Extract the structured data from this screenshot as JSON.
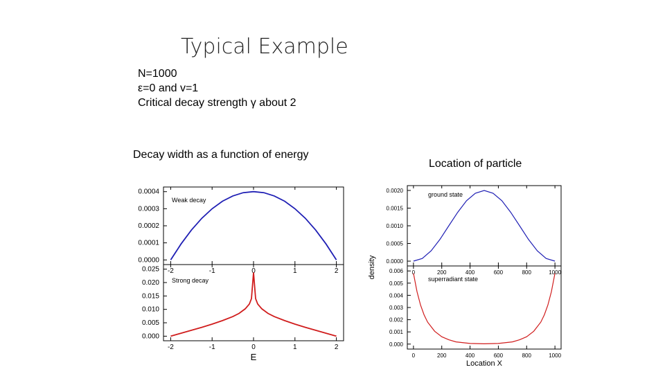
{
  "slide": {
    "title": "Typical Example",
    "params": [
      "N=1000",
      "ε=0 and v=1",
      "Critical decay strength γ about 2"
    ],
    "left_caption": "Decay width as a function of energy",
    "right_caption": "Location of particle"
  },
  "chart_data": [
    {
      "type": "line",
      "panel": "left-top",
      "annotation": "Weak decay",
      "xlabel": "",
      "ylabel": "",
      "xlim": [
        -2,
        2
      ],
      "ylim": [
        0,
        0.0004
      ],
      "xticks": [
        "-2",
        "-1",
        "0",
        "1",
        "2"
      ],
      "yticks": [
        "0.0000",
        "0.0001",
        "0.0002",
        "0.0003",
        "0.0004"
      ],
      "color": "#1f1fb4",
      "series": [
        {
          "x": [
            -2,
            -1.75,
            -1.5,
            -1.25,
            -1,
            -0.75,
            -0.5,
            -0.25,
            0,
            0.25,
            0.5,
            0.75,
            1,
            1.25,
            1.5,
            1.75,
            2
          ],
          "y": [
            0,
            9.38e-05,
            0.000175,
            0.000244,
            0.0003,
            0.000344,
            0.000375,
            0.000394,
            0.0004,
            0.000394,
            0.000375,
            0.000344,
            0.0003,
            0.000244,
            0.000175,
            9.38e-05,
            0
          ]
        }
      ]
    },
    {
      "type": "line",
      "panel": "left-bottom",
      "annotation": "Strong decay",
      "xlabel": "E",
      "ylabel": "",
      "xlim": [
        -2,
        2
      ],
      "ylim": [
        0,
        0.025
      ],
      "xticks": [
        "-2",
        "-1",
        "0",
        "1",
        "2"
      ],
      "yticks": [
        "0.000",
        "0.005",
        "0.010",
        "0.015",
        "0.020",
        "0.025"
      ],
      "color": "#d01c1c",
      "series": [
        {
          "x": [
            -2,
            -1.75,
            -1.5,
            -1.25,
            -1,
            -0.75,
            -0.5,
            -0.35,
            -0.2,
            -0.1,
            -0.05,
            0,
            0.05,
            0.1,
            0.2,
            0.35,
            0.5,
            0.75,
            1,
            1.25,
            1.5,
            1.75,
            2
          ],
          "y": [
            0,
            0.0011,
            0.0022,
            0.0033,
            0.0045,
            0.0058,
            0.0073,
            0.0085,
            0.0102,
            0.012,
            0.014,
            0.0237,
            0.014,
            0.012,
            0.0102,
            0.0085,
            0.0073,
            0.0058,
            0.0045,
            0.0033,
            0.0022,
            0.0011,
            0
          ]
        }
      ]
    },
    {
      "type": "line",
      "panel": "right-top",
      "annotation": "ground state",
      "xlabel": "",
      "ylabel": "density",
      "xlim": [
        0,
        1000
      ],
      "ylim": [
        0,
        0.002
      ],
      "xticks": [
        "0",
        "200",
        "400",
        "600",
        "800",
        "1000"
      ],
      "yticks": [
        "0.0000",
        "0.0005",
        "0.0010",
        "0.0015",
        "0.0020"
      ],
      "color": "#1f1fb4",
      "series": [
        {
          "x": [
            0,
            62.5,
            125,
            187.5,
            250,
            312.5,
            375,
            437.5,
            500,
            562.5,
            625,
            687.5,
            750,
            812.5,
            875,
            937.5,
            1000
          ],
          "y": [
            0,
            7.61e-05,
            0.000293,
            0.000617,
            0.001,
            0.00138,
            0.00171,
            0.00192,
            0.002,
            0.00192,
            0.00171,
            0.00138,
            0.001,
            0.000617,
            0.000293,
            7.61e-05,
            0
          ]
        }
      ]
    },
    {
      "type": "line",
      "panel": "right-bottom",
      "annotation": "superradiant state",
      "xlabel": "Location X",
      "ylabel": "density",
      "xlim": [
        0,
        1000
      ],
      "ylim": [
        0,
        0.006
      ],
      "xticks": [
        "0",
        "200",
        "400",
        "600",
        "800",
        "1000"
      ],
      "yticks": [
        "0.000",
        "0.001",
        "0.002",
        "0.003",
        "0.004",
        "0.005",
        "0.006"
      ],
      "color": "#d01c1c",
      "series": [
        {
          "x": [
            0,
            25,
            50,
            75,
            100,
            150,
            200,
            250,
            300,
            400,
            500,
            600,
            700,
            750,
            800,
            850,
            900,
            925,
            950,
            975,
            1000
          ],
          "y": [
            0.0058,
            0.0043,
            0.0032,
            0.0024,
            0.0018,
            0.00105,
            0.0006,
            0.00035,
            0.00018,
            5e-05,
            2e-05,
            5e-05,
            0.00018,
            0.00035,
            0.0006,
            0.00105,
            0.0018,
            0.0024,
            0.0032,
            0.0043,
            0.0058
          ]
        }
      ]
    }
  ]
}
